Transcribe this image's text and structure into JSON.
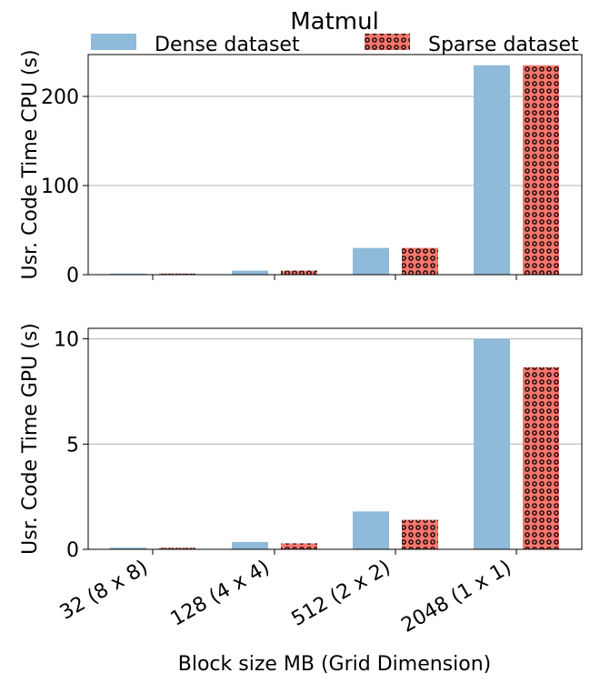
{
  "chart_data": {
    "type": "bar",
    "title": "Matmul",
    "xlabel": "Block size MB (Grid Dimension)",
    "categories": [
      "32 (8 x 8)",
      "128 (4 x 4)",
      "512 (2 x 2)",
      "2048 (1 x 1)"
    ],
    "legend": {
      "placement": "top",
      "entries": [
        "Dense dataset",
        "Sparse dataset"
      ]
    },
    "colors": {
      "dense": "#8fbada",
      "sparse": "#f8766d",
      "hatch": "#000000",
      "grid": "#b0b0b0"
    },
    "panels": [
      {
        "ylabel": "Usr. Code Time CPU (s)",
        "ylim": [
          0,
          247
        ],
        "yticks": [
          0,
          100,
          200
        ],
        "grid": "y",
        "series": [
          {
            "name": "Dense dataset",
            "values": [
              1.2,
              4.5,
              30,
              235
            ]
          },
          {
            "name": "Sparse dataset",
            "values": [
              1.2,
              4.5,
              30,
              235
            ]
          }
        ]
      },
      {
        "ylabel": "Usr. Code Time GPU (s)",
        "ylim": [
          0,
          10.5
        ],
        "yticks": [
          0,
          5,
          10
        ],
        "grid": "y",
        "series": [
          {
            "name": "Dense dataset",
            "values": [
              0.08,
              0.35,
              1.8,
              10.0
            ]
          },
          {
            "name": "Sparse dataset",
            "values": [
              0.07,
              0.28,
              1.4,
              8.65
            ]
          }
        ]
      }
    ]
  }
}
